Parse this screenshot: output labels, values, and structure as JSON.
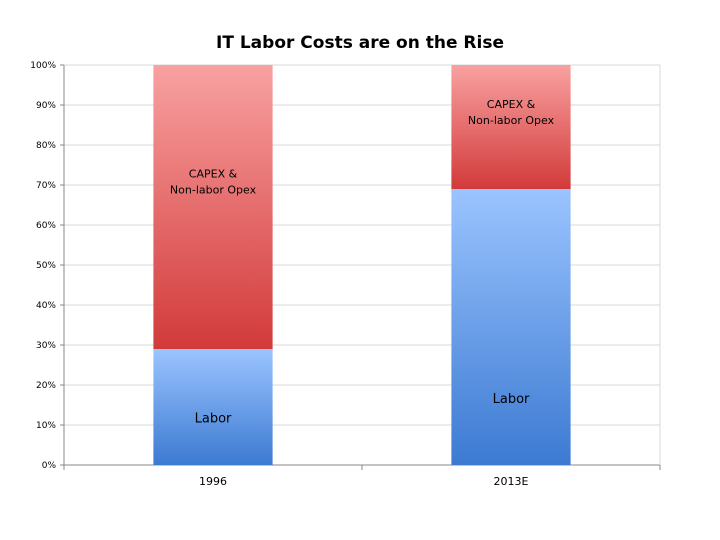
{
  "chart_data": {
    "type": "bar",
    "stacked": true,
    "title": "IT Labor Costs are on the Rise",
    "categories": [
      "1996",
      "2013E"
    ],
    "series": [
      {
        "name": "Labor",
        "label": "Labor",
        "values": [
          29,
          69
        ],
        "color": "#5b8fde",
        "color_top": "#9bc4ff",
        "color_bottom": "#3c7ad2"
      },
      {
        "name": "CAPEX & Non-labor Opex",
        "label_lines": [
          "CAPEX &",
          "Non-labor Opex"
        ],
        "values": [
          71,
          31
        ],
        "color": "#e05a5a",
        "color_top": "#f9a1a1",
        "color_bottom": "#d23a3a"
      }
    ],
    "y_ticks": [
      "0%",
      "10%",
      "20%",
      "30%",
      "40%",
      "50%",
      "60%",
      "70%",
      "80%",
      "90%",
      "100%"
    ],
    "ylim": [
      0,
      100
    ],
    "grid": true,
    "legend": "none"
  }
}
